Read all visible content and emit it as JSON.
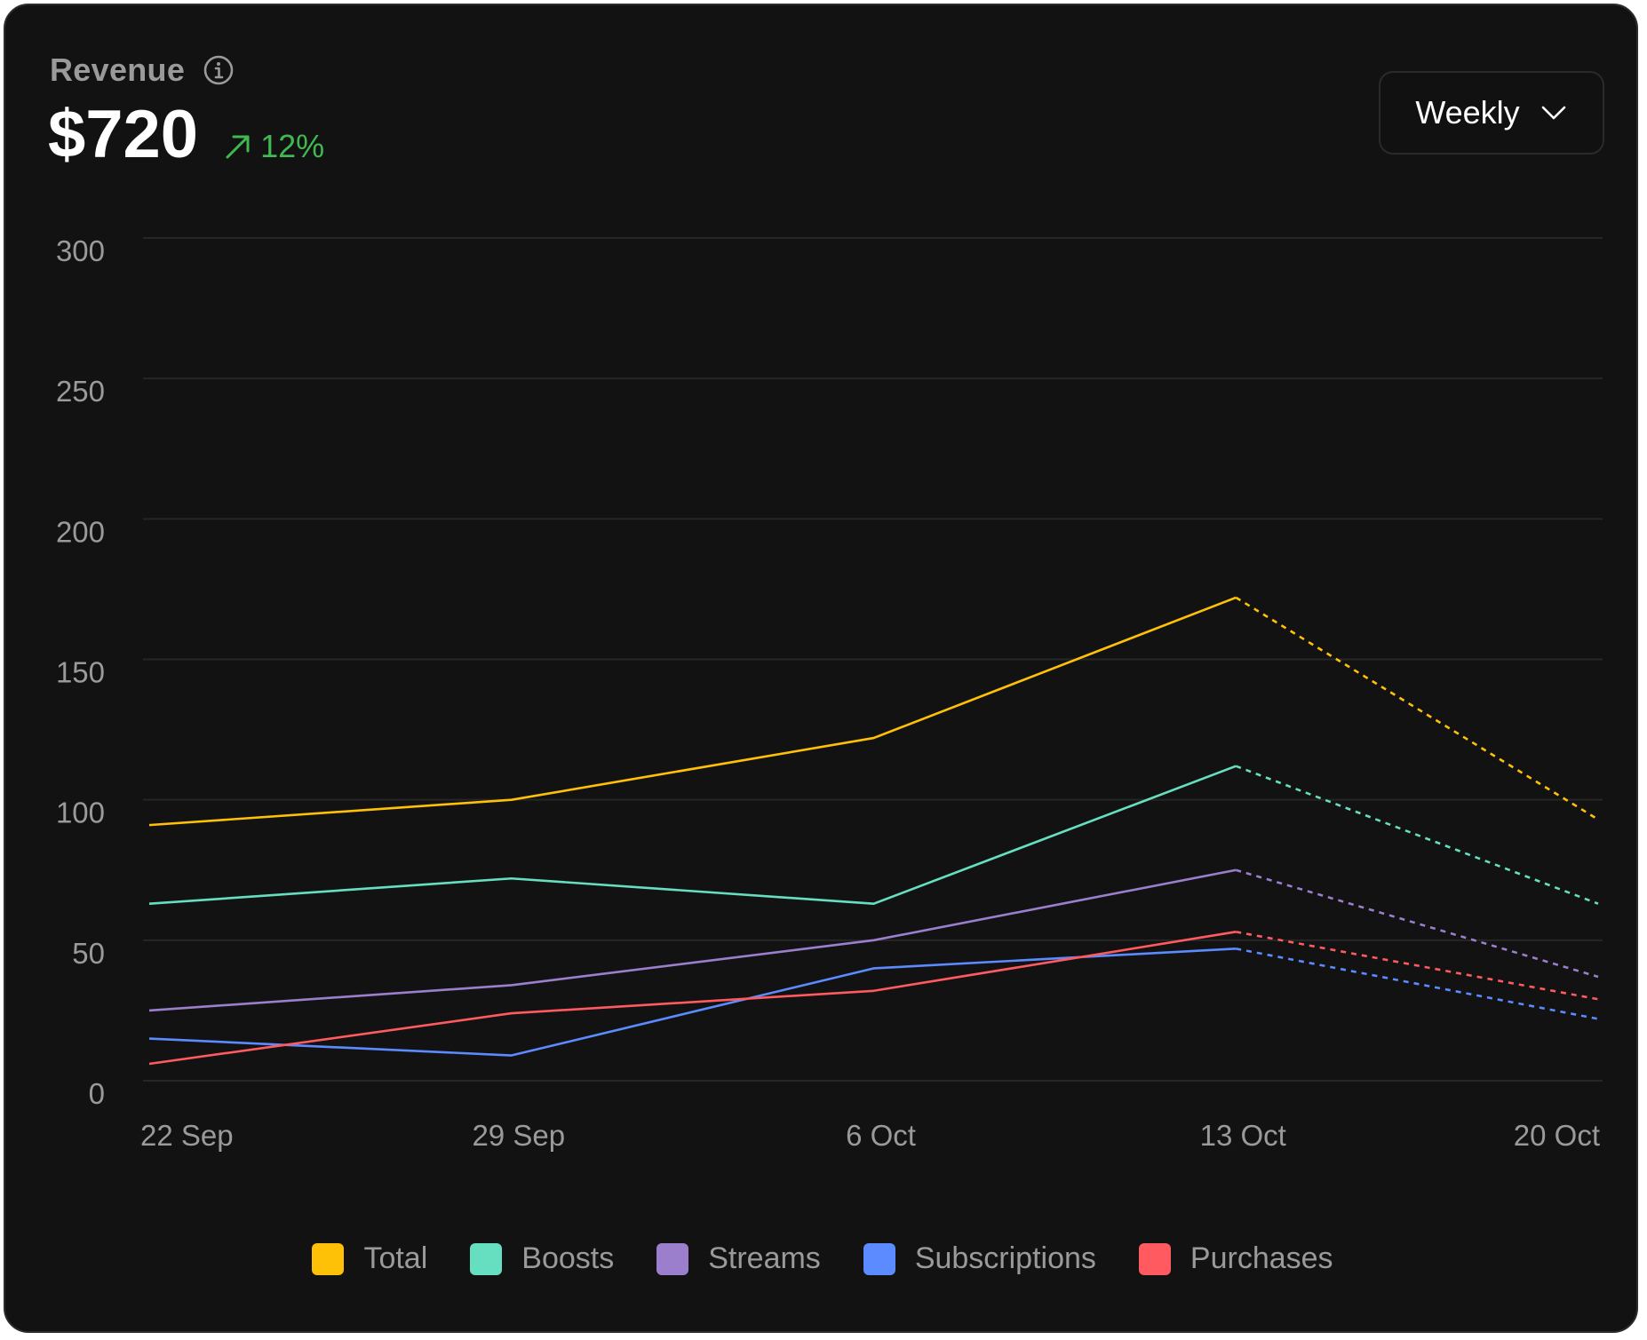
{
  "header": {
    "title": "Revenue",
    "info_icon": "info-icon",
    "value": "$720",
    "change": "12%",
    "change_icon": "arrow-up-right-icon",
    "change_color": "#3fb950"
  },
  "period_select": {
    "selected": "Weekly",
    "icon": "chevron-down-icon"
  },
  "chart_data": {
    "type": "line",
    "x": [
      "22 Sep",
      "29 Sep",
      "6 Oct",
      "13 Oct",
      "20 Oct"
    ],
    "ylim": [
      0,
      300
    ],
    "yticks": [
      "300",
      "250",
      "200",
      "150",
      "100",
      "50",
      "0"
    ],
    "grid": true,
    "legend_placement": "bottom",
    "projected_from_index": 3,
    "series": [
      {
        "name": "Total",
        "color": "#ffc107",
        "values": [
          91,
          100,
          122,
          172,
          93
        ]
      },
      {
        "name": "Boosts",
        "color": "#66dfc0",
        "values": [
          63,
          72,
          63,
          112,
          63
        ]
      },
      {
        "name": "Streams",
        "color": "#9b7fcc",
        "values": [
          25,
          34,
          50,
          75,
          37
        ]
      },
      {
        "name": "Subscriptions",
        "color": "#5b8bff",
        "values": [
          15,
          9,
          40,
          47,
          22
        ]
      },
      {
        "name": "Purchases",
        "color": "#ff5a5f",
        "values": [
          6,
          24,
          32,
          53,
          29
        ]
      }
    ]
  }
}
